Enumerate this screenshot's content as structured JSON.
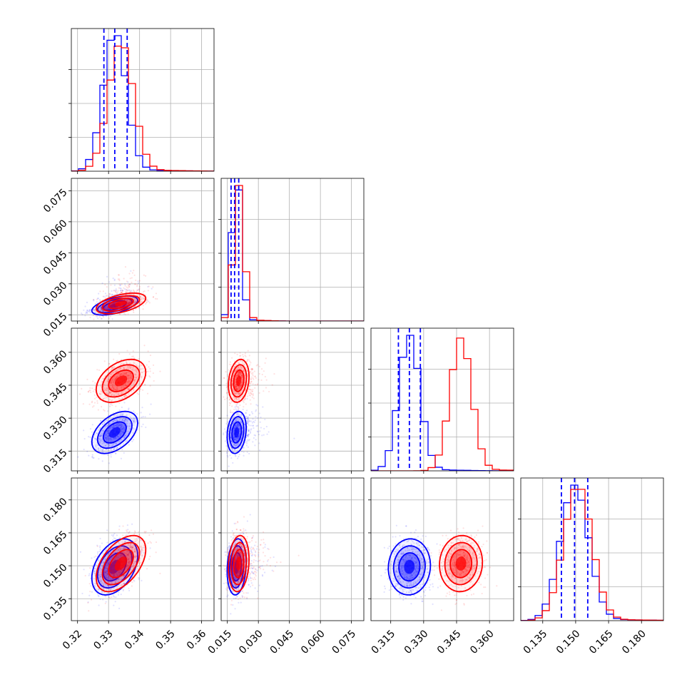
{
  "chart_data": {
    "type": "corner",
    "grid": true,
    "series": [
      {
        "name": "",
        "color": "#0000ff",
        "mean": [
          0.332,
          0.0195,
          0.3235,
          0.1495
        ],
        "sd": [
          0.0037,
          0.0023,
          0.0048,
          0.0064
        ],
        "rho": [
          [
            1,
            0.55,
            0.45,
            0.4
          ],
          [
            0.55,
            1,
            0.2,
            0.15
          ],
          [
            0.45,
            0.2,
            1,
            0.05
          ],
          [
            0.4,
            0.15,
            0.05,
            1
          ]
        ]
      },
      {
        "name": "",
        "color": "#ff0000",
        "mean": [
          0.334,
          0.0205,
          0.347,
          0.151
        ],
        "sd": [
          0.004,
          0.0025,
          0.0049,
          0.0064
        ],
        "rho": [
          [
            1,
            0.5,
            0.4,
            0.5
          ],
          [
            0.5,
            1,
            0.2,
            0.15
          ],
          [
            0.4,
            0.2,
            1,
            0.05
          ],
          [
            0.5,
            0.15,
            0.05,
            1
          ]
        ]
      }
    ],
    "quantile_lines": [
      [
        0.3285,
        0.332,
        0.336
      ],
      [
        0.0168,
        0.0185,
        0.0205
      ],
      [
        0.3185,
        0.3235,
        0.3285
      ],
      [
        0.1435,
        0.1495,
        0.1555
      ]
    ],
    "axis_ranges": [
      [
        0.318,
        0.364
      ],
      [
        0.012,
        0.081
      ],
      [
        0.306,
        0.371
      ],
      [
        0.125,
        0.19
      ]
    ],
    "x_ticks": [
      [
        {
          "v": 0.32,
          "label": "0.32"
        },
        {
          "v": 0.33,
          "label": "0.33"
        },
        {
          "v": 0.34,
          "label": "0.34"
        },
        {
          "v": 0.35,
          "label": "0.35"
        },
        {
          "v": 0.36,
          "label": "0.36"
        }
      ],
      [
        {
          "v": 0.015,
          "label": "0.015"
        },
        {
          "v": 0.03,
          "label": "0.030"
        },
        {
          "v": 0.045,
          "label": "0.045"
        },
        {
          "v": 0.06,
          "label": "0.060"
        },
        {
          "v": 0.075,
          "label": "0.075"
        }
      ],
      [
        {
          "v": 0.315,
          "label": "0.315"
        },
        {
          "v": 0.33,
          "label": "0.330"
        },
        {
          "v": 0.345,
          "label": "0.345"
        },
        {
          "v": 0.36,
          "label": "0.360"
        }
      ],
      [
        {
          "v": 0.135,
          "label": "0.135"
        },
        {
          "v": 0.15,
          "label": "0.150"
        },
        {
          "v": 0.165,
          "label": "0.165"
        },
        {
          "v": 0.18,
          "label": "0.180"
        }
      ]
    ],
    "y_ticks": [
      [],
      [
        {
          "v": 0.015,
          "label": "0.015"
        },
        {
          "v": 0.03,
          "label": "0.030"
        },
        {
          "v": 0.045,
          "label": "0.045"
        },
        {
          "v": 0.06,
          "label": "0.060"
        },
        {
          "v": 0.075,
          "label": "0.075"
        }
      ],
      [
        {
          "v": 0.315,
          "label": "0.315"
        },
        {
          "v": 0.33,
          "label": "0.330"
        },
        {
          "v": 0.345,
          "label": "0.345"
        },
        {
          "v": 0.36,
          "label": "0.360"
        }
      ],
      [
        {
          "v": 0.135,
          "label": "0.135"
        },
        {
          "v": 0.15,
          "label": "0.150"
        },
        {
          "v": 0.165,
          "label": "0.165"
        },
        {
          "v": 0.18,
          "label": "0.180"
        }
      ]
    ]
  }
}
